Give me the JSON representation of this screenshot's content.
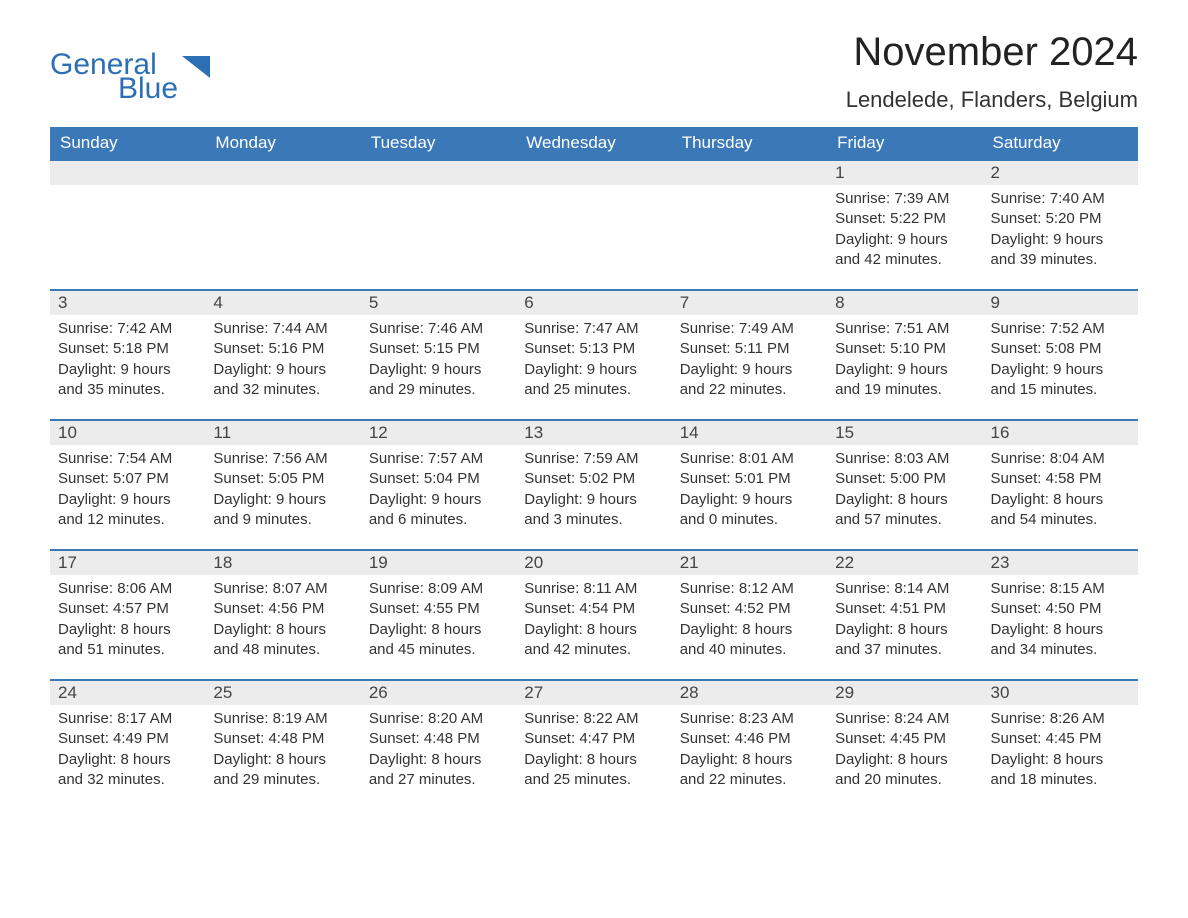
{
  "logo": {
    "word1": "General",
    "word2": "Blue",
    "triangle_color": "#2d6fb5"
  },
  "title": "November 2024",
  "location": "Lendelede, Flanders, Belgium",
  "colors": {
    "header_bg": "#3b78b8",
    "header_text": "#ffffff",
    "row_border": "#3b78b8",
    "daynum_bg": "#ececec",
    "text": "#333333",
    "background": "#ffffff"
  },
  "fonts": {
    "title_pt": 40,
    "location_pt": 22,
    "header_pt": 17,
    "daynum_pt": 17,
    "body_pt": 15
  },
  "day_labels": [
    "Sunday",
    "Monday",
    "Tuesday",
    "Wednesday",
    "Thursday",
    "Friday",
    "Saturday"
  ],
  "line_labels": {
    "sunrise": "Sunrise: ",
    "sunset": "Sunset: ",
    "daylight": "Daylight: "
  },
  "weeks": [
    [
      {
        "day": "",
        "sunrise": "",
        "sunset": "",
        "daylight": ""
      },
      {
        "day": "",
        "sunrise": "",
        "sunset": "",
        "daylight": ""
      },
      {
        "day": "",
        "sunrise": "",
        "sunset": "",
        "daylight": ""
      },
      {
        "day": "",
        "sunrise": "",
        "sunset": "",
        "daylight": ""
      },
      {
        "day": "",
        "sunrise": "",
        "sunset": "",
        "daylight": ""
      },
      {
        "day": "1",
        "sunrise": "7:39 AM",
        "sunset": "5:22 PM",
        "daylight": "9 hours and 42 minutes."
      },
      {
        "day": "2",
        "sunrise": "7:40 AM",
        "sunset": "5:20 PM",
        "daylight": "9 hours and 39 minutes."
      }
    ],
    [
      {
        "day": "3",
        "sunrise": "7:42 AM",
        "sunset": "5:18 PM",
        "daylight": "9 hours and 35 minutes."
      },
      {
        "day": "4",
        "sunrise": "7:44 AM",
        "sunset": "5:16 PM",
        "daylight": "9 hours and 32 minutes."
      },
      {
        "day": "5",
        "sunrise": "7:46 AM",
        "sunset": "5:15 PM",
        "daylight": "9 hours and 29 minutes."
      },
      {
        "day": "6",
        "sunrise": "7:47 AM",
        "sunset": "5:13 PM",
        "daylight": "9 hours and 25 minutes."
      },
      {
        "day": "7",
        "sunrise": "7:49 AM",
        "sunset": "5:11 PM",
        "daylight": "9 hours and 22 minutes."
      },
      {
        "day": "8",
        "sunrise": "7:51 AM",
        "sunset": "5:10 PM",
        "daylight": "9 hours and 19 minutes."
      },
      {
        "day": "9",
        "sunrise": "7:52 AM",
        "sunset": "5:08 PM",
        "daylight": "9 hours and 15 minutes."
      }
    ],
    [
      {
        "day": "10",
        "sunrise": "7:54 AM",
        "sunset": "5:07 PM",
        "daylight": "9 hours and 12 minutes."
      },
      {
        "day": "11",
        "sunrise": "7:56 AM",
        "sunset": "5:05 PM",
        "daylight": "9 hours and 9 minutes."
      },
      {
        "day": "12",
        "sunrise": "7:57 AM",
        "sunset": "5:04 PM",
        "daylight": "9 hours and 6 minutes."
      },
      {
        "day": "13",
        "sunrise": "7:59 AM",
        "sunset": "5:02 PM",
        "daylight": "9 hours and 3 minutes."
      },
      {
        "day": "14",
        "sunrise": "8:01 AM",
        "sunset": "5:01 PM",
        "daylight": "9 hours and 0 minutes."
      },
      {
        "day": "15",
        "sunrise": "8:03 AM",
        "sunset": "5:00 PM",
        "daylight": "8 hours and 57 minutes."
      },
      {
        "day": "16",
        "sunrise": "8:04 AM",
        "sunset": "4:58 PM",
        "daylight": "8 hours and 54 minutes."
      }
    ],
    [
      {
        "day": "17",
        "sunrise": "8:06 AM",
        "sunset": "4:57 PM",
        "daylight": "8 hours and 51 minutes."
      },
      {
        "day": "18",
        "sunrise": "8:07 AM",
        "sunset": "4:56 PM",
        "daylight": "8 hours and 48 minutes."
      },
      {
        "day": "19",
        "sunrise": "8:09 AM",
        "sunset": "4:55 PM",
        "daylight": "8 hours and 45 minutes."
      },
      {
        "day": "20",
        "sunrise": "8:11 AM",
        "sunset": "4:54 PM",
        "daylight": "8 hours and 42 minutes."
      },
      {
        "day": "21",
        "sunrise": "8:12 AM",
        "sunset": "4:52 PM",
        "daylight": "8 hours and 40 minutes."
      },
      {
        "day": "22",
        "sunrise": "8:14 AM",
        "sunset": "4:51 PM",
        "daylight": "8 hours and 37 minutes."
      },
      {
        "day": "23",
        "sunrise": "8:15 AM",
        "sunset": "4:50 PM",
        "daylight": "8 hours and 34 minutes."
      }
    ],
    [
      {
        "day": "24",
        "sunrise": "8:17 AM",
        "sunset": "4:49 PM",
        "daylight": "8 hours and 32 minutes."
      },
      {
        "day": "25",
        "sunrise": "8:19 AM",
        "sunset": "4:48 PM",
        "daylight": "8 hours and 29 minutes."
      },
      {
        "day": "26",
        "sunrise": "8:20 AM",
        "sunset": "4:48 PM",
        "daylight": "8 hours and 27 minutes."
      },
      {
        "day": "27",
        "sunrise": "8:22 AM",
        "sunset": "4:47 PM",
        "daylight": "8 hours and 25 minutes."
      },
      {
        "day": "28",
        "sunrise": "8:23 AM",
        "sunset": "4:46 PM",
        "daylight": "8 hours and 22 minutes."
      },
      {
        "day": "29",
        "sunrise": "8:24 AM",
        "sunset": "4:45 PM",
        "daylight": "8 hours and 20 minutes."
      },
      {
        "day": "30",
        "sunrise": "8:26 AM",
        "sunset": "4:45 PM",
        "daylight": "8 hours and 18 minutes."
      }
    ]
  ]
}
